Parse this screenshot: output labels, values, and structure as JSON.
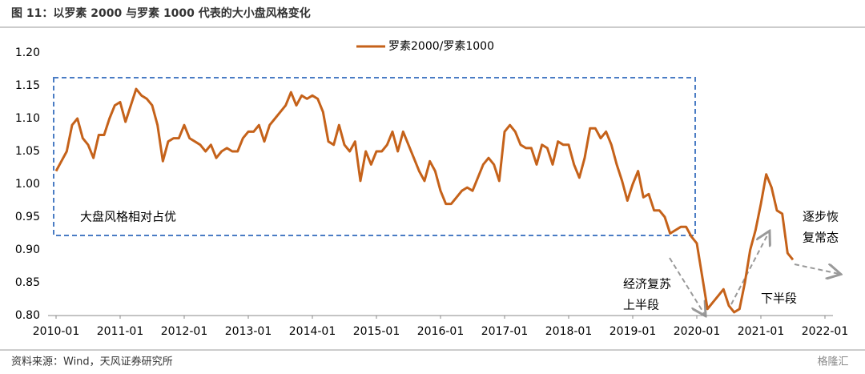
{
  "chart_data": {
    "type": "line",
    "title": "图 11：以罗素 2000 与罗素 1000 代表的大小盘风格变化",
    "source": "资料来源：Wind，天风证券研究所",
    "watermark": "格隆汇",
    "annotations": [
      "大盘风格相对占优",
      "经济复苏",
      "上半段",
      "下半段",
      "逐步恢",
      "复常态"
    ],
    "x": [
      "2010-01",
      "2010-02",
      "2010-03",
      "2010-04",
      "2010-05",
      "2010-06",
      "2010-07",
      "2010-08",
      "2010-09",
      "2010-10",
      "2010-11",
      "2010-12",
      "2011-01",
      "2011-02",
      "2011-03",
      "2011-04",
      "2011-05",
      "2011-06",
      "2011-07",
      "2011-08",
      "2011-09",
      "2011-10",
      "2011-11",
      "2011-12",
      "2012-01",
      "2012-02",
      "2012-03",
      "2012-04",
      "2012-05",
      "2012-06",
      "2012-07",
      "2012-08",
      "2012-09",
      "2012-10",
      "2012-11",
      "2012-12",
      "2013-01",
      "2013-02",
      "2013-03",
      "2013-04",
      "2013-05",
      "2013-06",
      "2013-07",
      "2013-08",
      "2013-09",
      "2013-10",
      "2013-11",
      "2013-12",
      "2014-01",
      "2014-02",
      "2014-03",
      "2014-04",
      "2014-05",
      "2014-06",
      "2014-07",
      "2014-08",
      "2014-09",
      "2014-10",
      "2014-11",
      "2014-12",
      "2015-01",
      "2015-02",
      "2015-03",
      "2015-04",
      "2015-05",
      "2015-06",
      "2015-07",
      "2015-08",
      "2015-09",
      "2015-10",
      "2015-11",
      "2015-12",
      "2016-01",
      "2016-02",
      "2016-03",
      "2016-04",
      "2016-05",
      "2016-06",
      "2016-07",
      "2016-08",
      "2016-09",
      "2016-10",
      "2016-11",
      "2016-12",
      "2017-01",
      "2017-02",
      "2017-03",
      "2017-04",
      "2017-05",
      "2017-06",
      "2017-07",
      "2017-08",
      "2017-09",
      "2017-10",
      "2017-11",
      "2017-12",
      "2018-01",
      "2018-02",
      "2018-03",
      "2018-04",
      "2018-05",
      "2018-06",
      "2018-07",
      "2018-08",
      "2018-09",
      "2018-10",
      "2018-11",
      "2018-12",
      "2019-01",
      "2019-02",
      "2019-03",
      "2019-04",
      "2019-05",
      "2019-06",
      "2019-07",
      "2019-08",
      "2019-09",
      "2019-10",
      "2019-11",
      "2019-12",
      "2020-01",
      "2020-02",
      "2020-03",
      "2020-04",
      "2020-05",
      "2020-06",
      "2020-07",
      "2020-08",
      "2020-09",
      "2020-10",
      "2020-11",
      "2020-12",
      "2021-01",
      "2021-02",
      "2021-03",
      "2021-04",
      "2021-05",
      "2021-06",
      "2021-07"
    ],
    "series": [
      {
        "name": "罗素2000/罗素1000",
        "color": "#c5621a",
        "values": [
          1.02,
          1.035,
          1.05,
          1.09,
          1.1,
          1.07,
          1.06,
          1.04,
          1.075,
          1.075,
          1.1,
          1.12,
          1.125,
          1.095,
          1.12,
          1.145,
          1.135,
          1.13,
          1.12,
          1.09,
          1.035,
          1.065,
          1.07,
          1.07,
          1.09,
          1.07,
          1.065,
          1.06,
          1.05,
          1.06,
          1.04,
          1.05,
          1.055,
          1.05,
          1.05,
          1.07,
          1.08,
          1.08,
          1.09,
          1.065,
          1.09,
          1.1,
          1.11,
          1.12,
          1.14,
          1.12,
          1.135,
          1.13,
          1.135,
          1.13,
          1.11,
          1.065,
          1.06,
          1.09,
          1.06,
          1.05,
          1.065,
          1.005,
          1.05,
          1.03,
          1.05,
          1.05,
          1.06,
          1.08,
          1.05,
          1.08,
          1.06,
          1.04,
          1.02,
          1.005,
          1.035,
          1.02,
          0.99,
          0.97,
          0.97,
          0.98,
          0.99,
          0.995,
          0.99,
          1.01,
          1.03,
          1.04,
          1.03,
          1.005,
          1.08,
          1.09,
          1.08,
          1.06,
          1.055,
          1.055,
          1.03,
          1.06,
          1.055,
          1.03,
          1.065,
          1.06,
          1.06,
          1.03,
          1.01,
          1.04,
          1.085,
          1.085,
          1.07,
          1.08,
          1.06,
          1.03,
          1.005,
          0.975,
          1.0,
          1.02,
          0.98,
          0.985,
          0.96,
          0.96,
          0.95,
          0.925,
          0.93,
          0.935,
          0.935,
          0.92,
          0.91,
          0.86,
          0.81,
          0.82,
          0.83,
          0.84,
          0.815,
          0.805,
          0.81,
          0.85,
          0.9,
          0.93,
          0.97,
          1.015,
          0.995,
          0.96,
          0.955,
          0.895,
          0.885
        ]
      }
    ],
    "xticks": [
      "2010-01",
      "2011-01",
      "2012-01",
      "2013-01",
      "2014-01",
      "2015-01",
      "2016-01",
      "2017-01",
      "2018-01",
      "2019-01",
      "2020-01",
      "2021-01",
      "2022-01"
    ],
    "xlim": [
      "2010-01",
      "2022-01"
    ],
    "ylim": [
      0.8,
      1.2
    ],
    "yticks": [
      {
        "value": 0.8,
        "label": "0.80"
      },
      {
        "value": 0.85,
        "label": "0.85"
      },
      {
        "value": 0.9,
        "label": "0.90"
      },
      {
        "value": 0.95,
        "label": "0.95"
      },
      {
        "value": 1.0,
        "label": "1.00"
      },
      {
        "value": 1.05,
        "label": "1.05"
      },
      {
        "value": 1.1,
        "label": "1.10"
      },
      {
        "value": 1.15,
        "label": "1.15"
      },
      {
        "value": 1.2,
        "label": "1.20"
      }
    ],
    "grid": false,
    "legend": "top"
  }
}
